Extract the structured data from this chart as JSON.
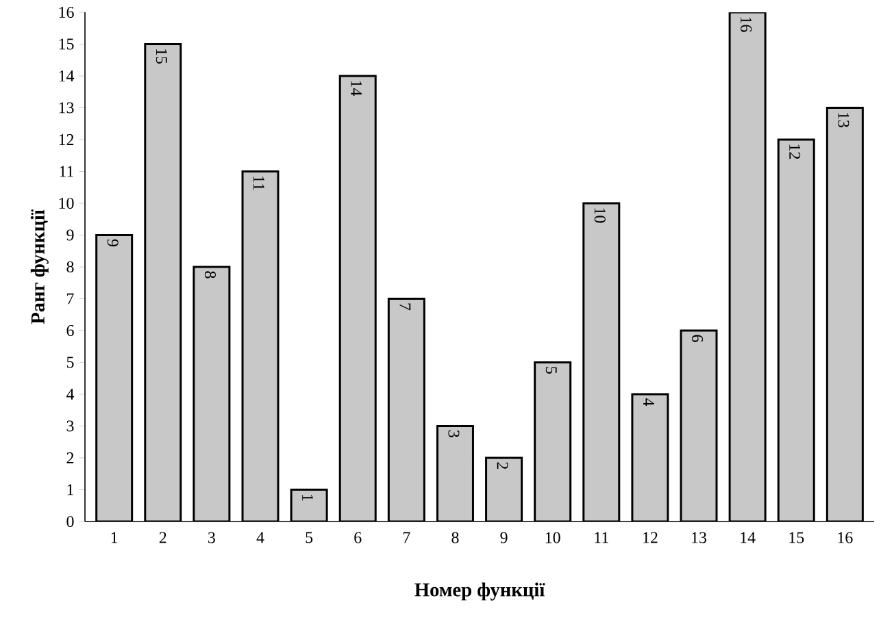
{
  "chart_data": {
    "type": "bar",
    "xlabel": "Номер функції",
    "ylabel": "Ранг функції",
    "categories": [
      "1",
      "2",
      "3",
      "4",
      "5",
      "6",
      "7",
      "8",
      "9",
      "10",
      "11",
      "12",
      "13",
      "14",
      "15",
      "16"
    ],
    "values": [
      9,
      15,
      8,
      11,
      1,
      14,
      7,
      3,
      2,
      5,
      10,
      4,
      6,
      16,
      12,
      13
    ],
    "color": "#c8c8c8",
    "ylim": [
      0,
      16
    ],
    "yticks": [
      0,
      1,
      2,
      3,
      4,
      5,
      6,
      7,
      8,
      9,
      10,
      11,
      12,
      13,
      14,
      15,
      16
    ],
    "data_labels": true,
    "grid": false
  }
}
